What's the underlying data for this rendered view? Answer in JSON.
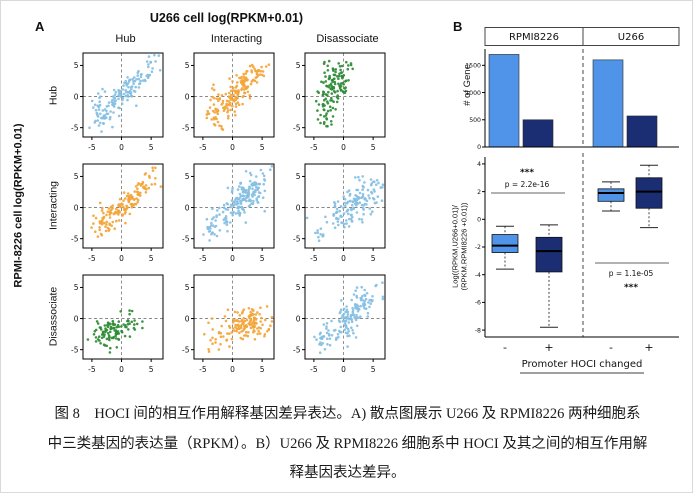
{
  "figure": {
    "panel_a_label": "A",
    "panel_b_label": "B"
  },
  "caption": {
    "lines": [
      "图 8　HOCI 间的相互作用解释基因差异表达。A) 散点图展示 U266 及 RPMI8226 两种细胞系",
      "中三类基因的表达量（RPKM）。B）U266 及 RPMI8226 细胞系中 HOCI 及其之间的相互作用解",
      "释基因表达差异。"
    ]
  },
  "colors": {
    "scatter_blue": "#85bfe3",
    "scatter_orange": "#f3a53a",
    "scatter_green": "#2e8b35",
    "bar_light": "#4f94e8",
    "bar_dark": "#1b2e73"
  },
  "chart_data": [
    {
      "id": "scatter_matrix",
      "type": "scatter",
      "title": "U266 cell log(RPKM+0.01)",
      "xlabel": "U266 cell log(RPKM+0.01)",
      "ylabel": "RPMI-8226 cell log(RPKM+0.01)",
      "cols": [
        "Hub",
        "Interacting",
        "Disassociate"
      ],
      "rows": [
        "Hub",
        "Interacting",
        "Disassociate"
      ],
      "xlim": [
        -6.5,
        7
      ],
      "ylim": [
        -6.5,
        7
      ],
      "xticks": [
        -5,
        0,
        5
      ],
      "yticks": [
        -5,
        0,
        5
      ],
      "guide_lines": {
        "x": 0,
        "y": 0,
        "style": "dashed"
      },
      "seed": 42,
      "cells": [
        {
          "row": "Hub",
          "col": "Hub",
          "color": "#85bfe3",
          "clusters": [
            {
              "n": 110,
              "cx": 1.6,
              "cy": 1.6,
              "sx": 0.8,
              "sy": 0.8,
              "d": 2.0
            },
            {
              "n": 28,
              "cx": -3.2,
              "cy": -3.2,
              "sx": 1.0,
              "sy": 1.0
            },
            {
              "n": 18,
              "cx": -3.0,
              "cy": -0.6,
              "sx": 0.9,
              "sy": 1.3
            }
          ]
        },
        {
          "row": "Hub",
          "col": "Interacting",
          "color": "#f3a53a",
          "clusters": [
            {
              "n": 130,
              "cx": 1.9,
              "cy": 1.9,
              "sx": 0.9,
              "sy": 0.9,
              "d": 1.9
            },
            {
              "n": 24,
              "cx": -3.0,
              "cy": -3.0,
              "sx": 1.1,
              "sy": 1.1
            },
            {
              "n": 22,
              "cx": -2.4,
              "cy": 0.0,
              "sx": 1.2,
              "sy": 1.2
            }
          ]
        },
        {
          "row": "Hub",
          "col": "Disassociate",
          "color": "#2e8b35",
          "clusters": [
            {
              "n": 85,
              "cx": -1.2,
              "cy": 2.2,
              "sx": 1.2,
              "sy": 1.7
            },
            {
              "n": 28,
              "cx": -2.6,
              "cy": -1.4,
              "sx": 1.0,
              "sy": 1.2
            },
            {
              "n": 12,
              "cx": -3.4,
              "cy": -4.0,
              "sx": 0.7,
              "sy": 0.7
            },
            {
              "n": 8,
              "cx": 0.6,
              "cy": 4.6,
              "sx": 0.8,
              "sy": 0.8
            }
          ]
        },
        {
          "row": "Interacting",
          "col": "Hub",
          "color": "#f3a53a",
          "clusters": [
            {
              "n": 105,
              "cx": 1.8,
              "cy": 1.5,
              "sx": 0.8,
              "sy": 0.8,
              "d": 1.9
            },
            {
              "n": 28,
              "cx": -2.8,
              "cy": -2.6,
              "sx": 1.2,
              "sy": 1.0
            },
            {
              "n": 22,
              "cx": -2.0,
              "cy": -0.8,
              "sx": 1.5,
              "sy": 0.8
            }
          ]
        },
        {
          "row": "Interacting",
          "col": "Interacting",
          "color": "#85bfe3",
          "clusters": [
            {
              "n": 150,
              "cx": 2.2,
              "cy": 1.8,
              "sx": 1.2,
              "sy": 1.2,
              "d": 1.4
            },
            {
              "n": 30,
              "cx": -1.5,
              "cy": -1.5,
              "sx": 1.2,
              "sy": 1.2,
              "d": 1.0
            },
            {
              "n": 15,
              "cx": -3.5,
              "cy": -3.5,
              "sx": 0.8,
              "sy": 0.8
            }
          ]
        },
        {
          "row": "Interacting",
          "col": "Disassociate",
          "color": "#85bfe3",
          "clusters": [
            {
              "n": 115,
              "cx": 2.5,
              "cy": 1.2,
              "sx": 1.3,
              "sy": 1.3,
              "d": 1.3
            },
            {
              "n": 24,
              "cx": -1.0,
              "cy": -2.0,
              "sx": 1.5,
              "sy": 1.1
            },
            {
              "n": 10,
              "cx": -3.8,
              "cy": -4.2,
              "sx": 0.6,
              "sy": 0.6
            }
          ]
        },
        {
          "row": "Disassociate",
          "col": "Hub",
          "color": "#2e8b35",
          "clusters": [
            {
              "n": 70,
              "cx": -2.3,
              "cy": -2.5,
              "sx": 1.2,
              "sy": 1.2
            },
            {
              "n": 24,
              "cx": 0.4,
              "cy": -1.6,
              "sx": 1.3,
              "sy": 0.9
            },
            {
              "n": 10,
              "cx": 1.6,
              "cy": 0.6,
              "sx": 1.0,
              "sy": 0.8
            }
          ]
        },
        {
          "row": "Disassociate",
          "col": "Interacting",
          "color": "#f3a53a",
          "clusters": [
            {
              "n": 105,
              "cx": 2.0,
              "cy": -1.0,
              "sx": 1.8,
              "sy": 1.1
            },
            {
              "n": 24,
              "cx": 3.4,
              "cy": 0.6,
              "sx": 1.2,
              "sy": 1.0
            },
            {
              "n": 20,
              "cx": -2.6,
              "cy": -3.0,
              "sx": 1.2,
              "sy": 1.0
            }
          ]
        },
        {
          "row": "Disassociate",
          "col": "Disassociate",
          "color": "#85bfe3",
          "clusters": [
            {
              "n": 115,
              "cx": 1.8,
              "cy": 1.2,
              "sx": 1.0,
              "sy": 1.0,
              "d": 1.7
            },
            {
              "n": 28,
              "cx": -3.0,
              "cy": -3.0,
              "sx": 1.0,
              "sy": 1.0
            },
            {
              "n": 15,
              "cx": -1.0,
              "cy": -2.5,
              "sx": 1.3,
              "sy": 1.0
            }
          ]
        }
      ]
    },
    {
      "id": "gene_counts",
      "type": "bar",
      "ylabel": "# of Gene",
      "groups": [
        "RPMI8226",
        "U266"
      ],
      "series_labels": [
        "-",
        "+"
      ],
      "values": [
        [
          1700,
          500
        ],
        [
          1600,
          570
        ]
      ],
      "colors": {
        "minus": "#4f94e8",
        "plus": "#1b2e73"
      },
      "ylim": [
        0,
        1800
      ],
      "yticks": [
        0,
        500,
        1000,
        1500
      ]
    },
    {
      "id": "expression_ratio",
      "type": "boxplot",
      "ylabel_lines": [
        "Log((RPKM,U266+0.01)/",
        "(RPKM.RPMI8226 +0.01))"
      ],
      "xlabel": "Promoter HOCI changed",
      "categories": [
        "-",
        "+",
        "-",
        "+"
      ],
      "ylim": [
        -8.5,
        4.5
      ],
      "yticks": [
        4,
        2,
        0,
        -2,
        -4,
        -6,
        -8
      ],
      "boxes": [
        {
          "group": "RPMI8226",
          "category": "-",
          "color": "#4f94e8",
          "low": -3.6,
          "q1": -2.4,
          "median": -1.9,
          "q3": -1.1,
          "high": -0.5
        },
        {
          "group": "RPMI8226",
          "category": "+",
          "color": "#1b2e73",
          "low": -7.8,
          "q1": -3.8,
          "median": -2.3,
          "q3": -1.3,
          "high": -0.4
        },
        {
          "group": "U266",
          "category": "-",
          "color": "#4f94e8",
          "low": 0.6,
          "q1": 1.3,
          "median": 1.9,
          "q3": 2.2,
          "high": 2.7
        },
        {
          "group": "U266",
          "category": "+",
          "color": "#1b2e73",
          "low": -0.6,
          "q1": 0.8,
          "median": 2.0,
          "q3": 3.0,
          "high": 3.9
        }
      ],
      "annotations": [
        {
          "stars": "***",
          "p_value": "p = 2.2e-16",
          "side": "left"
        },
        {
          "stars": "***",
          "p_value": "p = 1.1e-05",
          "side": "right"
        }
      ]
    }
  ]
}
